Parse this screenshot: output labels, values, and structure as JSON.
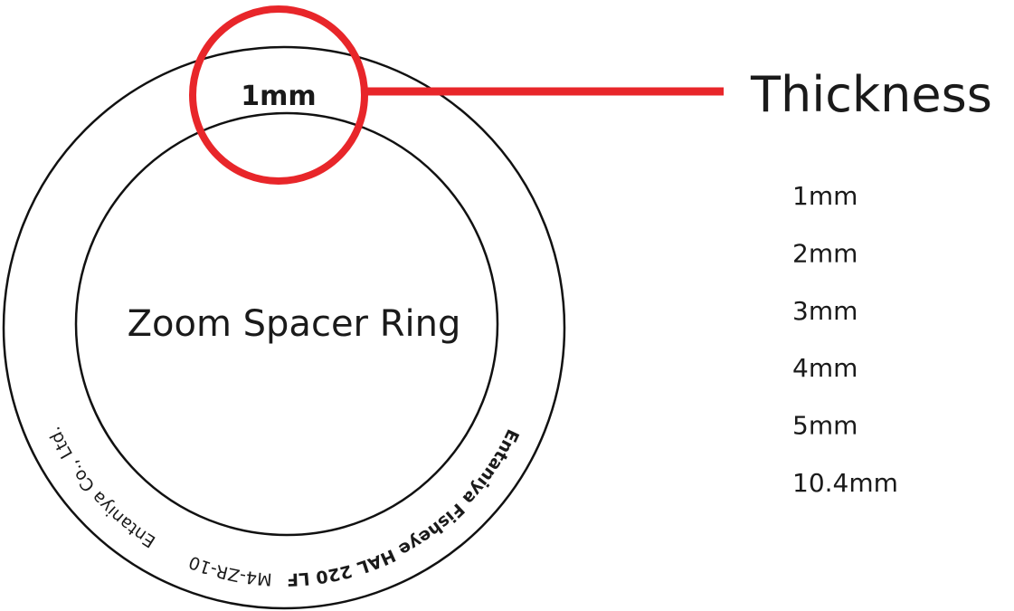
{
  "diagram": {
    "ring_label": "Zoom Spacer Ring",
    "thickness_marker": "1mm",
    "ring_texts": [
      "Entaniya Fisheye HAL 220 LF",
      "M4-ZR-10",
      "Entaniya Co., Ltd."
    ],
    "legend_title": "Thickness",
    "thickness_options": [
      "1mm",
      "2mm",
      "3mm",
      "4mm",
      "5mm",
      "10.4mm"
    ]
  }
}
